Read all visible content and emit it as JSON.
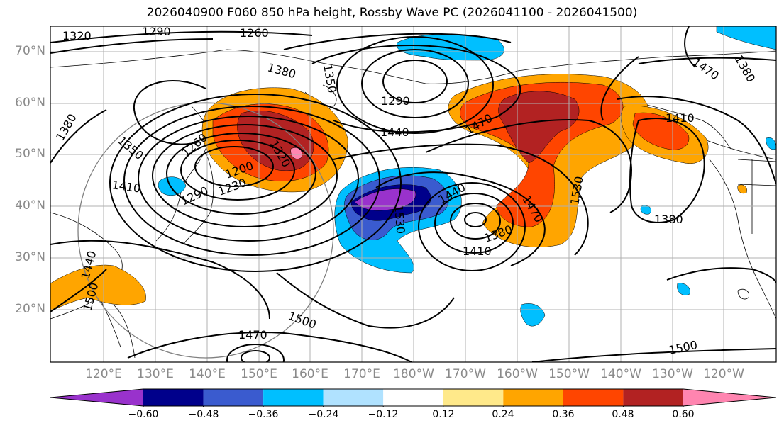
{
  "title": "2026040900 F060 850 hPa height, Rossby Wave PC (2026041100 - 2026041500)",
  "lat_labels": [
    "70°N",
    "60°N",
    "50°N",
    "40°N",
    "30°N",
    "20°N"
  ],
  "lon_labels": [
    "120°E",
    "130°E",
    "140°E",
    "150°E",
    "160°E",
    "170°E",
    "180°W",
    "170°W",
    "160°W",
    "150°W",
    "140°W",
    "130°W",
    "120°W"
  ],
  "contour_labels": [
    "1320",
    "1290",
    "1260",
    "1380",
    "1350",
    "1290",
    "1440",
    "1470",
    "1410",
    "1380",
    "1350",
    "1260",
    "1320",
    "1200",
    "1230",
    "1290",
    "1410",
    "1440",
    "1530",
    "1470",
    "1380",
    "1410",
    "1530",
    "1380",
    "1440",
    "1500",
    "1470",
    "1500",
    "1500",
    "1380",
    "1470"
  ],
  "colorbar": {
    "tick_labels": [
      "−0.60",
      "−0.48",
      "−0.36",
      "−0.24",
      "−0.12",
      "0.12",
      "0.24",
      "0.36",
      "0.48",
      "0.60"
    ],
    "colors": [
      "#9932cc",
      "#00008b",
      "#3a5bcf",
      "#00bfff",
      "#b0e2ff",
      "#ffffff",
      "#ffe98a",
      "#ffa500",
      "#ff4500",
      "#b22222",
      "#ff85b0"
    ]
  }
}
